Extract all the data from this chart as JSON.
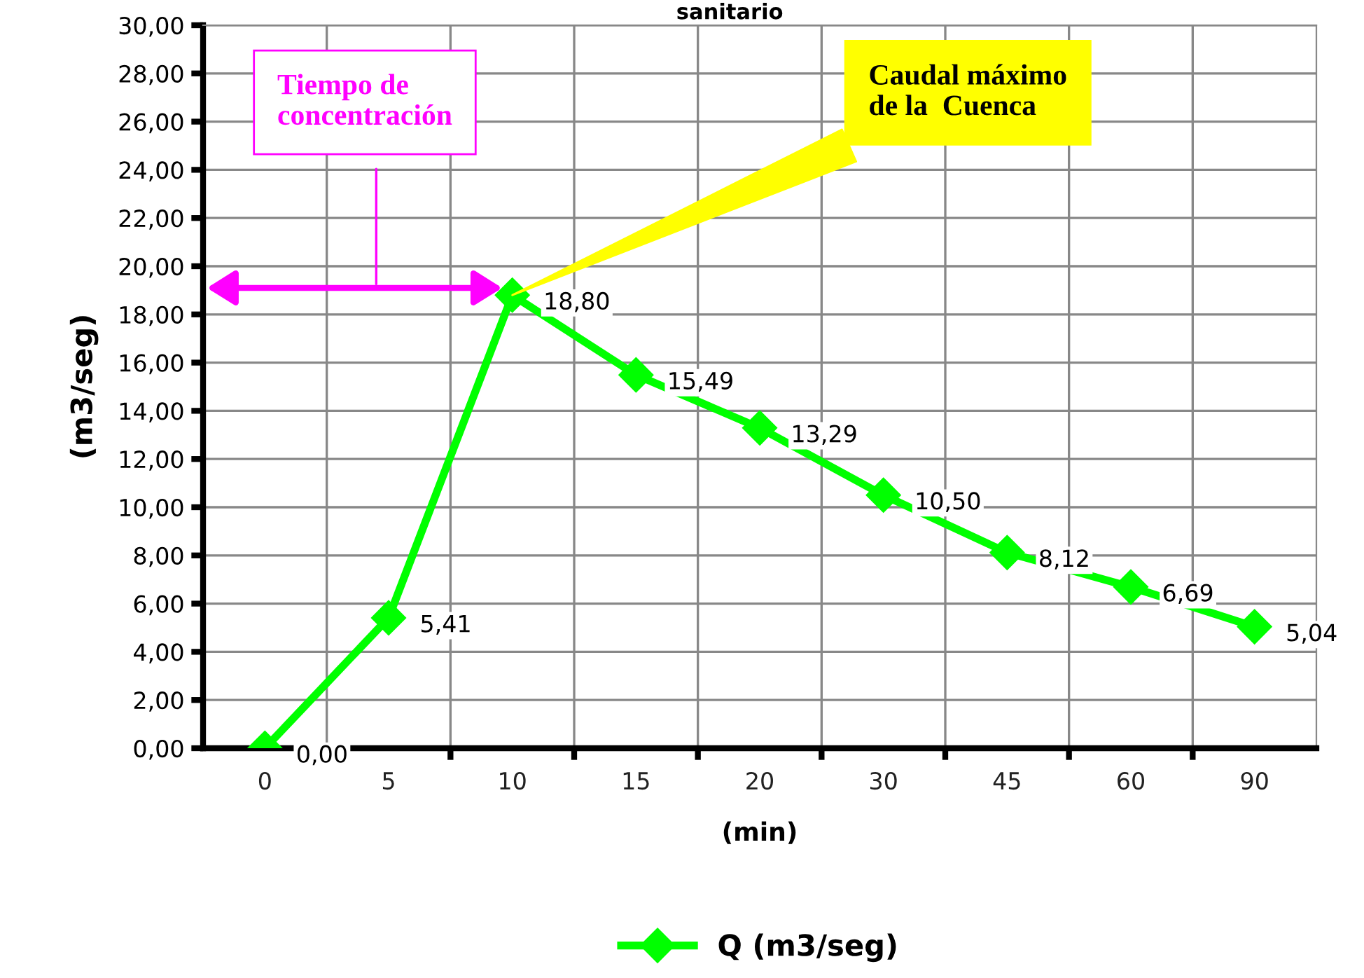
{
  "chart_data": {
    "type": "line",
    "title": "sanitario",
    "xlabel": "(min)",
    "ylabel": "(m3/seg)",
    "categories": [
      "0",
      "5",
      "10",
      "15",
      "20",
      "30",
      "45",
      "60",
      "90"
    ],
    "series": [
      {
        "name": "Q (m3/seg)",
        "color": "#00ff00",
        "values": [
          0.0,
          5.41,
          18.8,
          15.49,
          13.29,
          10.5,
          8.12,
          6.69,
          5.04
        ],
        "value_labels": [
          "0,00",
          "5,41",
          "18,80",
          "15,49",
          "13,29",
          "10,50",
          "8,12",
          "6,69",
          "5,04"
        ]
      }
    ],
    "ylim": [
      0,
      30
    ],
    "yticks": [
      {
        "value": 0,
        "label": "0,00"
      },
      {
        "value": 2,
        "label": "2,00"
      },
      {
        "value": 4,
        "label": "4,00"
      },
      {
        "value": 6,
        "label": "6,00"
      },
      {
        "value": 8,
        "label": "8,00"
      },
      {
        "value": 10,
        "label": "10,00"
      },
      {
        "value": 12,
        "label": "12,00"
      },
      {
        "value": 14,
        "label": "14,00"
      },
      {
        "value": 16,
        "label": "16,00"
      },
      {
        "value": 18,
        "label": "18,00"
      },
      {
        "value": 20,
        "label": "20,00"
      },
      {
        "value": 22,
        "label": "22,00"
      },
      {
        "value": 24,
        "label": "24,00"
      },
      {
        "value": 26,
        "label": "26,00"
      },
      {
        "value": 28,
        "label": "28,00"
      },
      {
        "value": 30,
        "label": "30,00"
      }
    ],
    "annotations": [
      "Tiempo de\nconcentración",
      {
        "text": "Caudal máximo\nde la  Cuenca",
        "x": "10",
        "y": 18.8
      }
    ],
    "grid": true,
    "legend": "bottom",
    "marker": "diamond",
    "line_style": "solid"
  }
}
